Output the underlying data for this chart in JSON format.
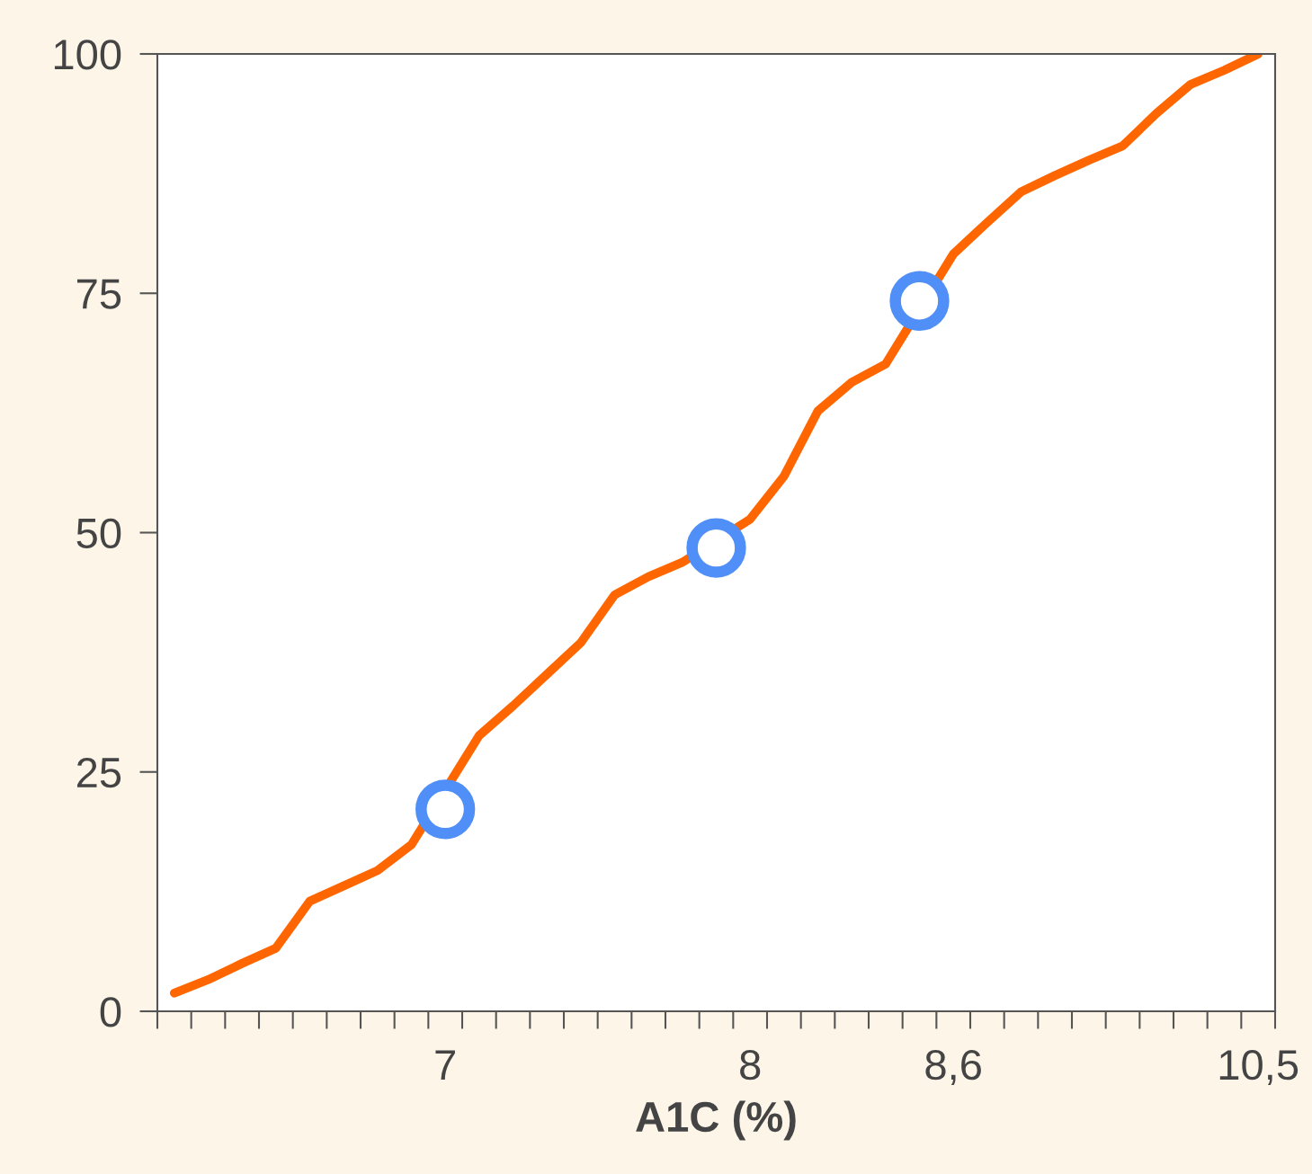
{
  "chart_data": {
    "type": "line",
    "xlabel": "A1C (%)",
    "categories": [
      null,
      null,
      null,
      null,
      null,
      null,
      null,
      null,
      "7",
      null,
      null,
      null,
      null,
      null,
      null,
      null,
      null,
      "8",
      null,
      null,
      null,
      null,
      null,
      "8,6",
      null,
      null,
      null,
      null,
      null,
      null,
      null,
      null,
      "10,5"
    ],
    "series": [
      {
        "color": "#ff6600",
        "marker": "none",
        "values": [
          1.9,
          3.3,
          5.0,
          6.6,
          11.5,
          13.1,
          14.7,
          17.4,
          null,
          28.8,
          31.9,
          35.2,
          38.5,
          43.5,
          45.4,
          46.9,
          null,
          51.4,
          55.9,
          62.7,
          65.7,
          67.6,
          null,
          79.1,
          82.4,
          85.6,
          87.3,
          88.9,
          90.4,
          93.8,
          96.8,
          98.3,
          100
        ]
      },
      {
        "type": "scatter",
        "color": "#4f8ff7",
        "marker": "circle",
        "values": [
          null,
          null,
          null,
          null,
          null,
          null,
          null,
          null,
          21.1,
          null,
          null,
          null,
          null,
          null,
          null,
          null,
          48.4,
          null,
          null,
          null,
          null,
          null,
          74.2,
          null,
          null,
          null,
          null,
          null,
          null,
          null,
          null,
          null,
          null
        ]
      }
    ],
    "ylim": [
      0,
      100
    ],
    "yticks": [
      0,
      25,
      50,
      75,
      100
    ],
    "grid": false,
    "legend": false
  }
}
